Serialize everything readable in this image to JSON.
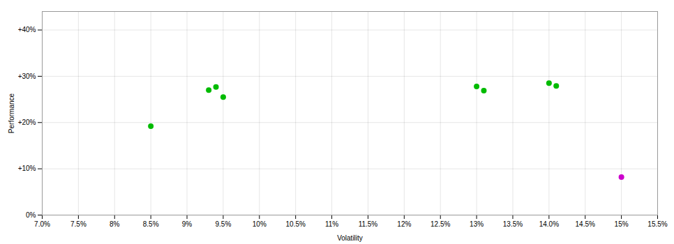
{
  "chart_data": {
    "type": "scatter",
    "xlabel": "Volatility",
    "ylabel": "Performance",
    "series": [
      {
        "color": "#00bb00",
        "x": [
          0.085,
          0.093,
          0.094,
          0.095,
          0.13,
          0.131,
          0.14,
          0.141
        ],
        "values": [
          0.192,
          0.27,
          0.277,
          0.255,
          0.278,
          0.269,
          0.285,
          0.279
        ]
      },
      {
        "color": "#cc00cc",
        "x": [
          0.15
        ],
        "values": [
          0.082
        ]
      }
    ],
    "marker": "circle",
    "xlim": [
      0.07,
      0.155
    ],
    "ylim": [
      0.0,
      0.44
    ],
    "xticks": [
      {
        "value": 0.07,
        "label": "7.0%"
      },
      {
        "value": 0.075,
        "label": "7.5%"
      },
      {
        "value": 0.08,
        "label": "8%"
      },
      {
        "value": 0.085,
        "label": "8.5%"
      },
      {
        "value": 0.09,
        "label": "9%"
      },
      {
        "value": 0.095,
        "label": "9.5%"
      },
      {
        "value": 0.1,
        "label": "10%"
      },
      {
        "value": 0.105,
        "label": "10.5%"
      },
      {
        "value": 0.11,
        "label": "11%"
      },
      {
        "value": 0.115,
        "label": "11.5%"
      },
      {
        "value": 0.12,
        "label": "12%"
      },
      {
        "value": 0.125,
        "label": "12.5%"
      },
      {
        "value": 0.13,
        "label": "13%"
      },
      {
        "value": 0.135,
        "label": "13.5%"
      },
      {
        "value": 0.14,
        "label": "14.0%"
      },
      {
        "value": 0.145,
        "label": "14.5%"
      },
      {
        "value": 0.15,
        "label": "15%"
      },
      {
        "value": 0.155,
        "label": "15.5%"
      }
    ],
    "yticks": [
      {
        "value": 0.0,
        "label": "0%"
      },
      {
        "value": 0.1,
        "label": "+10%"
      },
      {
        "value": 0.2,
        "label": "+20%"
      },
      {
        "value": 0.3,
        "label": "+30%"
      },
      {
        "value": 0.4,
        "label": "+40%"
      }
    ],
    "grid": true
  }
}
